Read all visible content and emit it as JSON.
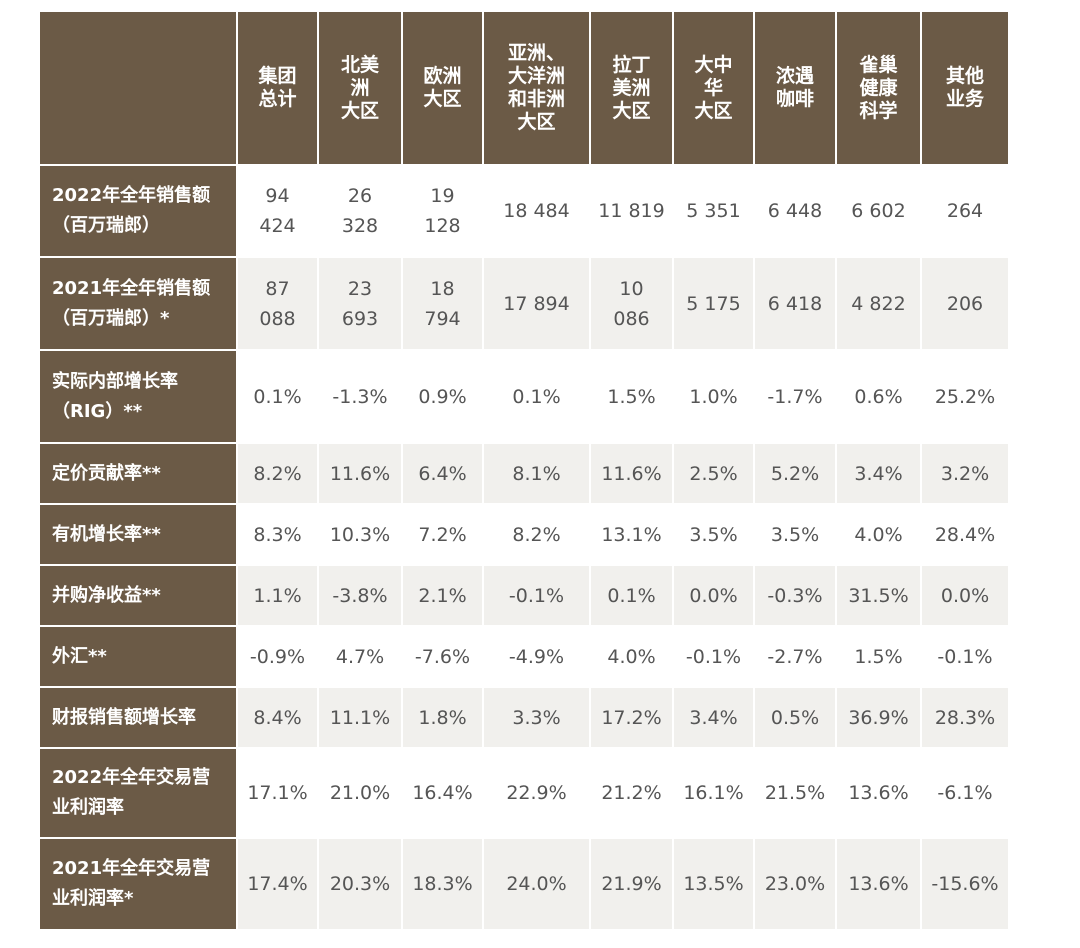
{
  "header": {
    "columns": [
      "集团\n总计",
      "北美\n洲\n大区",
      "欧洲\n大区",
      "亚洲、\n大洋洲\n和非洲\n大区",
      "拉丁\n美洲\n大区",
      "大中\n华\n大区",
      "浓遇\n咖啡",
      "雀巢\n健康\n科学",
      "其他\n业务"
    ]
  },
  "rows": [
    {
      "label": "2022年全年销售额\n（百万瑞郎）",
      "values": [
        "94\n424",
        "26\n328",
        "19\n128",
        "18 484",
        "11 819",
        "5 351",
        "6 448",
        "6 602",
        "264"
      ]
    },
    {
      "label": "2021年全年销售额\n（百万瑞郎）*",
      "values": [
        "87\n088",
        "23\n693",
        "18\n794",
        "17 894",
        "10\n086",
        "5 175",
        "6 418",
        "4 822",
        "206"
      ]
    },
    {
      "label": "实际内部增长率\n（RIG）**",
      "values": [
        "0.1%",
        "-1.3%",
        "0.9%",
        "0.1%",
        "1.5%",
        "1.0%",
        "-1.7%",
        "0.6%",
        "25.2%"
      ]
    },
    {
      "label": "定价贡献率**",
      "values": [
        "8.2%",
        "11.6%",
        "6.4%",
        "8.1%",
        "11.6%",
        "2.5%",
        "5.2%",
        "3.4%",
        "3.2%"
      ]
    },
    {
      "label": "有机增长率**",
      "values": [
        "8.3%",
        "10.3%",
        "7.2%",
        "8.2%",
        "13.1%",
        "3.5%",
        "3.5%",
        "4.0%",
        "28.4%"
      ]
    },
    {
      "label": "并购净收益**",
      "values": [
        "1.1%",
        "-3.8%",
        "2.1%",
        "-0.1%",
        "0.1%",
        "0.0%",
        "-0.3%",
        "31.5%",
        "0.0%"
      ]
    },
    {
      "label": "外汇**",
      "values": [
        "-0.9%",
        "4.7%",
        "-7.6%",
        "-4.9%",
        "4.0%",
        "-0.1%",
        "-2.7%",
        "1.5%",
        "-0.1%"
      ]
    },
    {
      "label": "财报销售额增长率",
      "values": [
        "8.4%",
        "11.1%",
        "1.8%",
        "3.3%",
        "17.2%",
        "3.4%",
        "0.5%",
        "36.9%",
        "28.3%"
      ]
    },
    {
      "label": "2022年全年交易营\n业利润率",
      "values": [
        "17.1%",
        "21.0%",
        "16.4%",
        "22.9%",
        "21.2%",
        "16.1%",
        "21.5%",
        "13.6%",
        "-6.1%"
      ]
    },
    {
      "label": "2021年全年交易营\n业利润率*",
      "values": [
        "17.4%",
        "20.3%",
        "18.3%",
        "24.0%",
        "21.9%",
        "13.5%",
        "23.0%",
        "13.6%",
        "-15.6%"
      ]
    }
  ]
}
